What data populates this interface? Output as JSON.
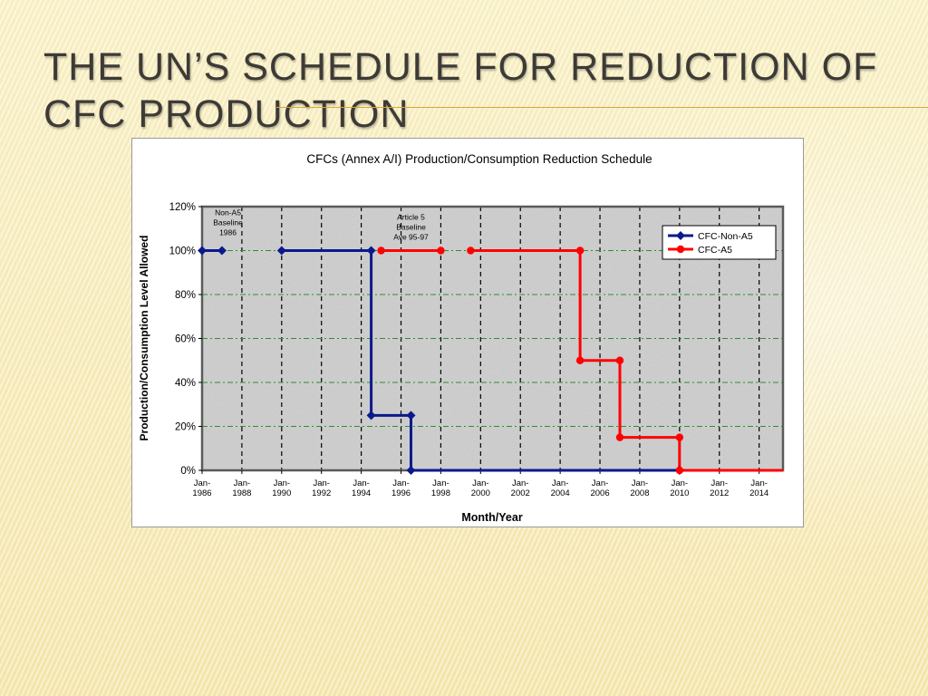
{
  "slide": {
    "title": "The UN’s schedule for reduction of CFC production"
  },
  "chart_data": {
    "type": "line",
    "title": "CFCs (Annex A/I) Production/Consumption Reduction Schedule",
    "xlabel": "Month/Year",
    "ylabel": "Production/Consumption Level Allowed",
    "xlim": [
      1986,
      2015.2
    ],
    "ylim": [
      0,
      120
    ],
    "yticks": [
      "0%",
      "20%",
      "40%",
      "60%",
      "80%",
      "100%",
      "120%"
    ],
    "xticks": [
      {
        "top": "Jan-",
        "bottom": "1986",
        "x": 1986
      },
      {
        "top": "Jan-",
        "bottom": "1988",
        "x": 1988
      },
      {
        "top": "Jan-",
        "bottom": "1990",
        "x": 1990
      },
      {
        "top": "Jan-",
        "bottom": "1992",
        "x": 1992
      },
      {
        "top": "Jan-",
        "bottom": "1994",
        "x": 1994
      },
      {
        "top": "Jan-",
        "bottom": "1996",
        "x": 1996
      },
      {
        "top": "Jan-",
        "bottom": "1998",
        "x": 1998
      },
      {
        "top": "Jan-",
        "bottom": "2000",
        "x": 2000
      },
      {
        "top": "Jan-",
        "bottom": "2002",
        "x": 2002
      },
      {
        "top": "Jan-",
        "bottom": "2004",
        "x": 2004
      },
      {
        "top": "Jan-",
        "bottom": "2006",
        "x": 2006
      },
      {
        "top": "Jan-",
        "bottom": "2008",
        "x": 2008
      },
      {
        "top": "Jan-",
        "bottom": "2010",
        "x": 2010
      },
      {
        "top": "Jan-",
        "bottom": "2012",
        "x": 2012
      },
      {
        "top": "Jan-",
        "bottom": "2014",
        "x": 2014
      }
    ],
    "grid": true,
    "legend": "top-right",
    "series": [
      {
        "name": "CFC-Non-A5",
        "color": "#0a1a8c",
        "marker": "diamond",
        "segments": [
          [
            [
              1986,
              100
            ],
            [
              1987,
              100
            ]
          ],
          [
            [
              1990,
              100
            ],
            [
              1994.5,
              100
            ],
            [
              1994.5,
              25
            ],
            [
              1996.5,
              25
            ],
            [
              1996.5,
              0
            ],
            [
              2010,
              0
            ]
          ]
        ]
      },
      {
        "name": "CFC-A5",
        "color": "#ff0000",
        "marker": "circle",
        "segments": [
          [
            [
              1995,
              100
            ],
            [
              1998,
              100
            ]
          ],
          [
            [
              1999.5,
              100
            ],
            [
              2005,
              100
            ],
            [
              2005,
              50
            ],
            [
              2007,
              50
            ],
            [
              2007,
              15
            ],
            [
              2010,
              15
            ],
            [
              2010,
              0
            ],
            [
              2015.2,
              0
            ]
          ]
        ]
      }
    ],
    "annotations": [
      {
        "lines": [
          "Non-A5",
          "Baseline",
          "1986"
        ],
        "x": 1987.3,
        "y": 116
      },
      {
        "lines": [
          "Article 5",
          "Baseline",
          "Ave 95-97"
        ],
        "x": 1996.5,
        "y": 114
      }
    ]
  }
}
